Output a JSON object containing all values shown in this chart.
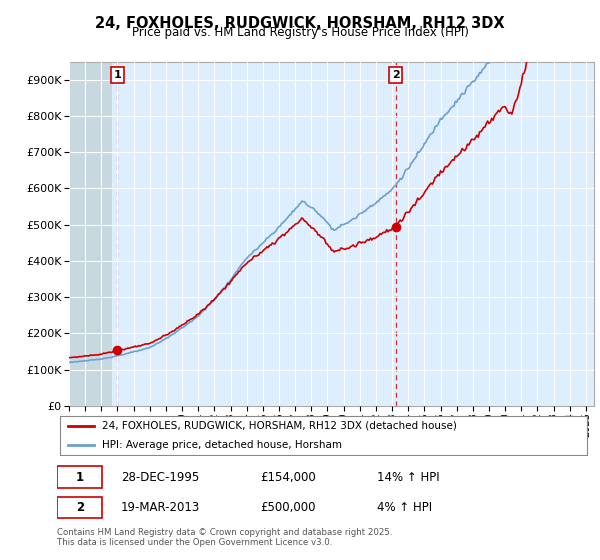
{
  "title1": "24, FOXHOLES, RUDGWICK, HORSHAM, RH12 3DX",
  "title2": "Price paid vs. HM Land Registry's House Price Index (HPI)",
  "legend1": "24, FOXHOLES, RUDGWICK, HORSHAM, RH12 3DX (detached house)",
  "legend2": "HPI: Average price, detached house, Horsham",
  "sale1_date": "28-DEC-1995",
  "sale1_price": 154000,
  "sale1_hpi": "14% ↑ HPI",
  "sale1_year": 1995.99,
  "sale2_date": "19-MAR-2013",
  "sale2_price": 500000,
  "sale2_hpi": "4% ↑ HPI",
  "sale2_year": 2013.22,
  "ylim_min": 0,
  "ylim_max": 950000,
  "hpi_color": "#6aa0d4",
  "price_color": "#cc0000",
  "plot_bg_color": "#ddeeff",
  "hatch_color": "#b8ccd8",
  "grid_color": "#ffffff",
  "annotation_box_color": "#cc0000",
  "footnote": "Contains HM Land Registry data © Crown copyright and database right 2025.\nThis data is licensed under the Open Government Licence v3.0.",
  "xmin": 1993,
  "xmax": 2025.5
}
